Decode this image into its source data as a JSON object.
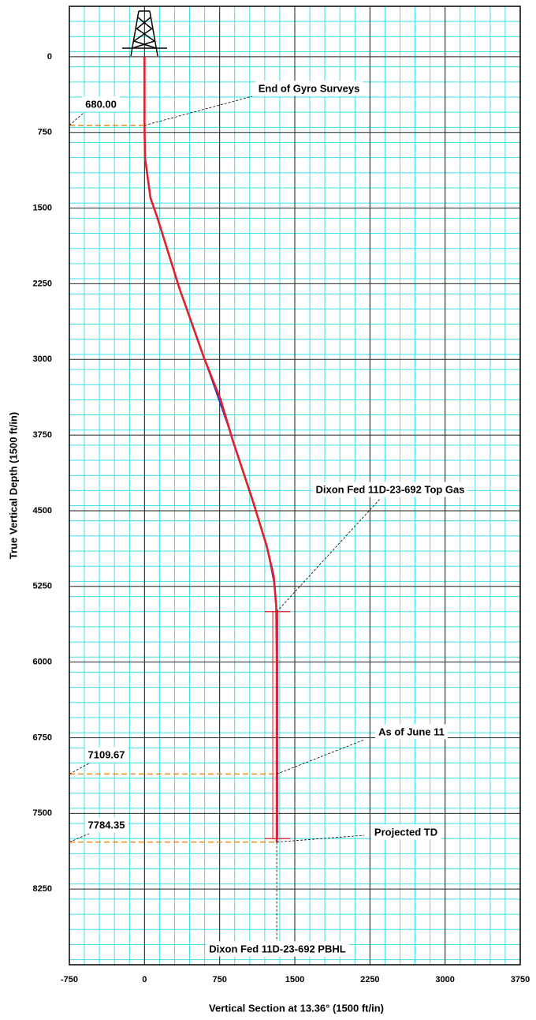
{
  "chart_data": {
    "type": "line",
    "x_label": "Vertical Section at 13.36° (1500 ft/in)",
    "y_label": "True Vertical Depth (1500 ft/in)",
    "xlim": [
      -750,
      3750
    ],
    "ylim": [
      -500,
      9000
    ],
    "xticks": [
      -750,
      0,
      750,
      1500,
      2250,
      3000,
      3750
    ],
    "yticks": [
      0,
      750,
      1500,
      2250,
      3000,
      3750,
      4500,
      5250,
      6000,
      6750,
      7500,
      8250
    ],
    "y_inverted": true,
    "grid": true,
    "minor_step": 150,
    "series": [
      {
        "color": "#1f2fd0",
        "x": [
          0,
          0,
          5,
          60,
          130,
          350,
          600,
          760,
          900,
          1100,
          1230,
          1290,
          1320,
          1325,
          1325
        ],
        "values": [
          0,
          680,
          1000,
          1400,
          1600,
          2300,
          3000,
          3450,
          3850,
          4450,
          4900,
          5200,
          5500,
          6000,
          7784
        ]
      },
      {
        "color": "#e0202a",
        "x": [
          0,
          0,
          5,
          60,
          130,
          350,
          600,
          760,
          880,
          1080,
          1220,
          1290,
          1315,
          1320,
          1320
        ],
        "values": [
          0,
          680,
          1000,
          1400,
          1600,
          2300,
          3000,
          3400,
          3800,
          4400,
          4850,
          5150,
          5450,
          6000,
          7784
        ]
      }
    ],
    "depth_markers": [
      {
        "value": 680,
        "label": "680.00"
      },
      {
        "value": 7109.67,
        "label": "7109.67"
      },
      {
        "value": 7784.35,
        "label": "7784.35"
      }
    ],
    "marker_color": "#f08a1c",
    "target": {
      "vs": [
        1280,
        1330
      ],
      "depth": [
        5500,
        7750
      ],
      "color": "#e0202a"
    },
    "callouts": [
      "End of Gyro Surveys",
      "Dixon Fed 11D-23-692 Top Gas",
      "As of June 11",
      "Projected TD",
      "Dixon Fed 11D-23-692 PBHL"
    ]
  }
}
